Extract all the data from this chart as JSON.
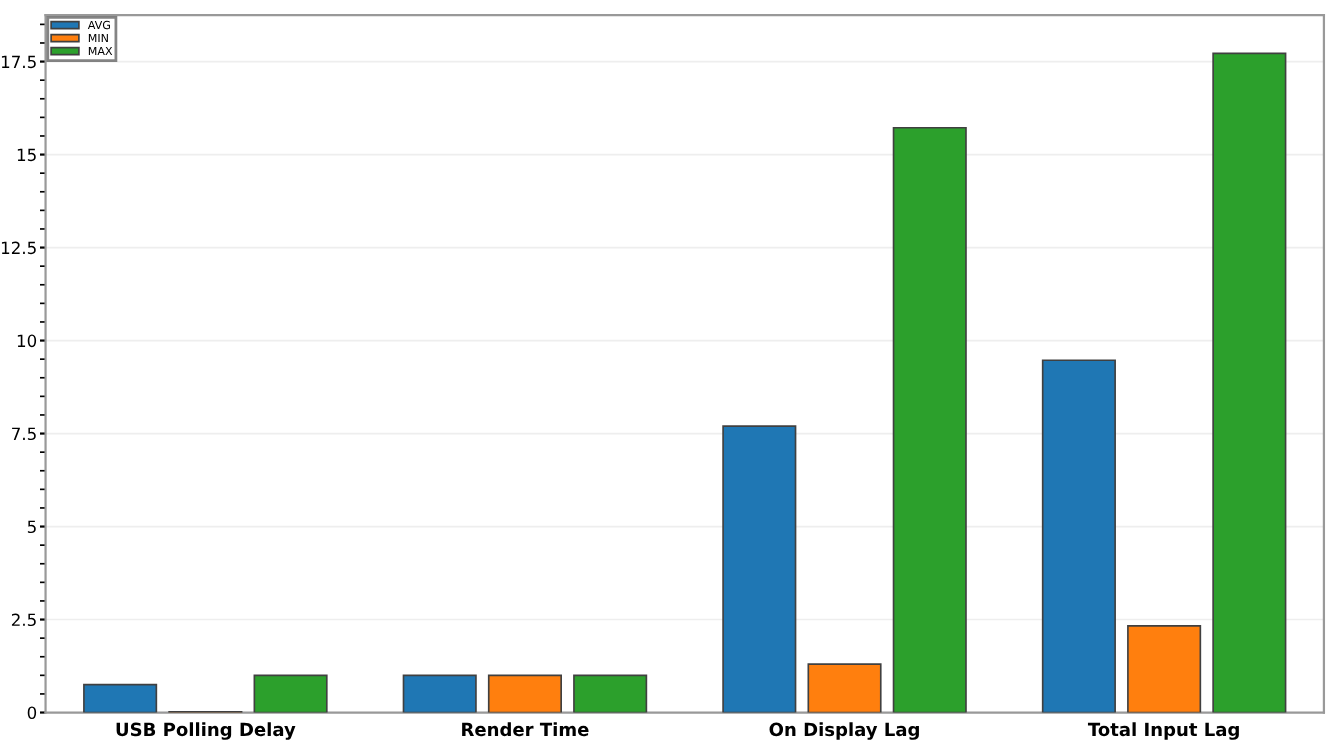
{
  "chart_data": {
    "type": "bar",
    "categories": [
      "USB Polling Delay",
      "Render Time",
      "On Display Lag",
      "Total Input Lag"
    ],
    "series": [
      {
        "name": "AVG",
        "color": "#1f77b4",
        "values": [
          0.75,
          1.0,
          7.7,
          9.47
        ]
      },
      {
        "name": "MIN",
        "color": "#ff7f0e",
        "values": [
          0.02,
          1.0,
          1.3,
          2.33
        ]
      },
      {
        "name": "MAX",
        "color": "#2ca02c",
        "values": [
          1.0,
          1.0,
          15.72,
          17.72
        ]
      }
    ],
    "ylim": [
      0,
      18.75
    ],
    "yticks": [
      0,
      2.5,
      5,
      7.5,
      10,
      12.5,
      15,
      17.5
    ],
    "grid": "y",
    "legend": "top left"
  }
}
